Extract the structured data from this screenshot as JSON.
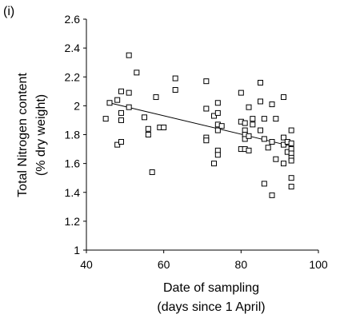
{
  "chart_data": {
    "type": "scatter",
    "panel_label": "(i)",
    "xlabel": "Date of sampling",
    "xlabel_line2": "(days since 1 April)",
    "ylabel": "Total Nitrogen content",
    "ylabel_line2": "(% dry weight)",
    "xlim": [
      40,
      100
    ],
    "ylim": [
      1,
      2.6
    ],
    "xticks": [
      40,
      60,
      80,
      100
    ],
    "yticks": [
      1,
      1.2,
      1.4,
      1.6,
      1.8,
      2,
      2.2,
      2.4,
      2.6
    ],
    "xtick_labels": [
      "40",
      "60",
      "80",
      "100"
    ],
    "ytick_labels": [
      "1",
      "1.2",
      "1.4",
      "1.6",
      "1.8",
      "2",
      "2.2",
      "2.4",
      "2.6"
    ],
    "grid": false,
    "legend": "none",
    "marker": "open-square",
    "points": [
      {
        "x": 45,
        "y": 1.91
      },
      {
        "x": 46,
        "y": 2.02
      },
      {
        "x": 48,
        "y": 2.04
      },
      {
        "x": 48,
        "y": 1.73
      },
      {
        "x": 49,
        "y": 2.1
      },
      {
        "x": 49,
        "y": 1.95
      },
      {
        "x": 49,
        "y": 1.9
      },
      {
        "x": 49,
        "y": 1.75
      },
      {
        "x": 51,
        "y": 2.35
      },
      {
        "x": 51,
        "y": 2.09
      },
      {
        "x": 51,
        "y": 1.99
      },
      {
        "x": 53,
        "y": 2.23
      },
      {
        "x": 55,
        "y": 1.92
      },
      {
        "x": 56,
        "y": 1.84
      },
      {
        "x": 56,
        "y": 1.8
      },
      {
        "x": 57,
        "y": 1.54
      },
      {
        "x": 58,
        "y": 2.06
      },
      {
        "x": 59,
        "y": 1.85
      },
      {
        "x": 60,
        "y": 1.85
      },
      {
        "x": 63,
        "y": 2.19
      },
      {
        "x": 63,
        "y": 2.11
      },
      {
        "x": 71,
        "y": 2.17
      },
      {
        "x": 71,
        "y": 1.98
      },
      {
        "x": 71,
        "y": 1.78
      },
      {
        "x": 71,
        "y": 1.76
      },
      {
        "x": 73,
        "y": 1.93
      },
      {
        "x": 73,
        "y": 1.6
      },
      {
        "x": 74,
        "y": 2.02
      },
      {
        "x": 74,
        "y": 1.95
      },
      {
        "x": 74,
        "y": 1.87
      },
      {
        "x": 74,
        "y": 1.83
      },
      {
        "x": 74,
        "y": 1.69
      },
      {
        "x": 74,
        "y": 1.66
      },
      {
        "x": 75,
        "y": 1.86
      },
      {
        "x": 80,
        "y": 2.09
      },
      {
        "x": 80,
        "y": 1.89
      },
      {
        "x": 80,
        "y": 1.7
      },
      {
        "x": 81,
        "y": 1.88
      },
      {
        "x": 81,
        "y": 1.83
      },
      {
        "x": 81,
        "y": 1.8
      },
      {
        "x": 81,
        "y": 1.77
      },
      {
        "x": 81,
        "y": 1.7
      },
      {
        "x": 82,
        "y": 1.99
      },
      {
        "x": 82,
        "y": 1.79
      },
      {
        "x": 82,
        "y": 1.69
      },
      {
        "x": 83,
        "y": 1.91
      },
      {
        "x": 83,
        "y": 1.87
      },
      {
        "x": 85,
        "y": 2.16
      },
      {
        "x": 85,
        "y": 2.03
      },
      {
        "x": 85,
        "y": 1.83
      },
      {
        "x": 86,
        "y": 1.91
      },
      {
        "x": 86,
        "y": 1.77
      },
      {
        "x": 86,
        "y": 1.46
      },
      {
        "x": 87,
        "y": 1.71
      },
      {
        "x": 88,
        "y": 2.01
      },
      {
        "x": 88,
        "y": 1.75
      },
      {
        "x": 88,
        "y": 1.38
      },
      {
        "x": 89,
        "y": 1.91
      },
      {
        "x": 89,
        "y": 1.63
      },
      {
        "x": 91,
        "y": 2.06
      },
      {
        "x": 91,
        "y": 1.78
      },
      {
        "x": 91,
        "y": 1.73
      },
      {
        "x": 91,
        "y": 1.6
      },
      {
        "x": 92,
        "y": 1.75
      },
      {
        "x": 92,
        "y": 1.68
      },
      {
        "x": 93,
        "y": 1.83
      },
      {
        "x": 93,
        "y": 1.74
      },
      {
        "x": 93,
        "y": 1.7
      },
      {
        "x": 93,
        "y": 1.67
      },
      {
        "x": 93,
        "y": 1.64
      },
      {
        "x": 93,
        "y": 1.62
      },
      {
        "x": 93,
        "y": 1.5
      },
      {
        "x": 93,
        "y": 1.44
      }
    ],
    "trendline": {
      "x": [
        46,
        93
      ],
      "y": [
        2.02,
        1.72
      ]
    }
  }
}
